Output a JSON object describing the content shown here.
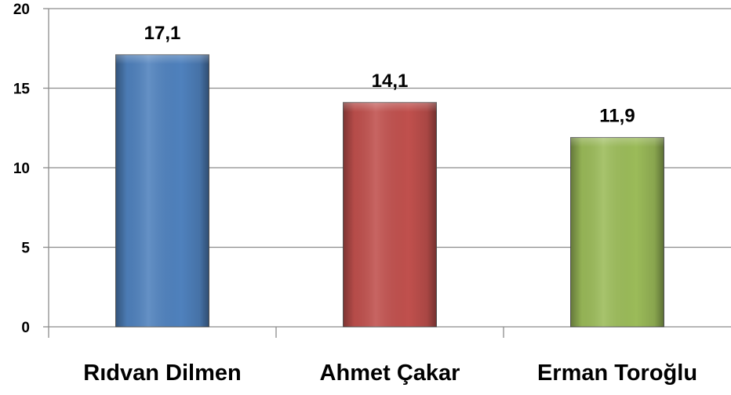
{
  "chart_data": {
    "type": "bar",
    "categories": [
      "Rıdvan Dilmen",
      "Ahmet Çakar",
      "Erman Toroğlu"
    ],
    "values": [
      17.1,
      14.1,
      11.9
    ],
    "value_labels": [
      "17,1",
      "14,1",
      "11,9"
    ],
    "bar_colors": [
      "#4F81BD",
      "#C0504D",
      "#9BBB59"
    ],
    "ylim": [
      0,
      20
    ],
    "y_ticks": [
      0,
      5,
      10,
      15,
      20
    ],
    "y_tick_labels": [
      "0",
      "5",
      "10",
      "15",
      "20"
    ],
    "grid": true,
    "legend": false,
    "title": "",
    "xlabel": "",
    "ylabel": ""
  }
}
